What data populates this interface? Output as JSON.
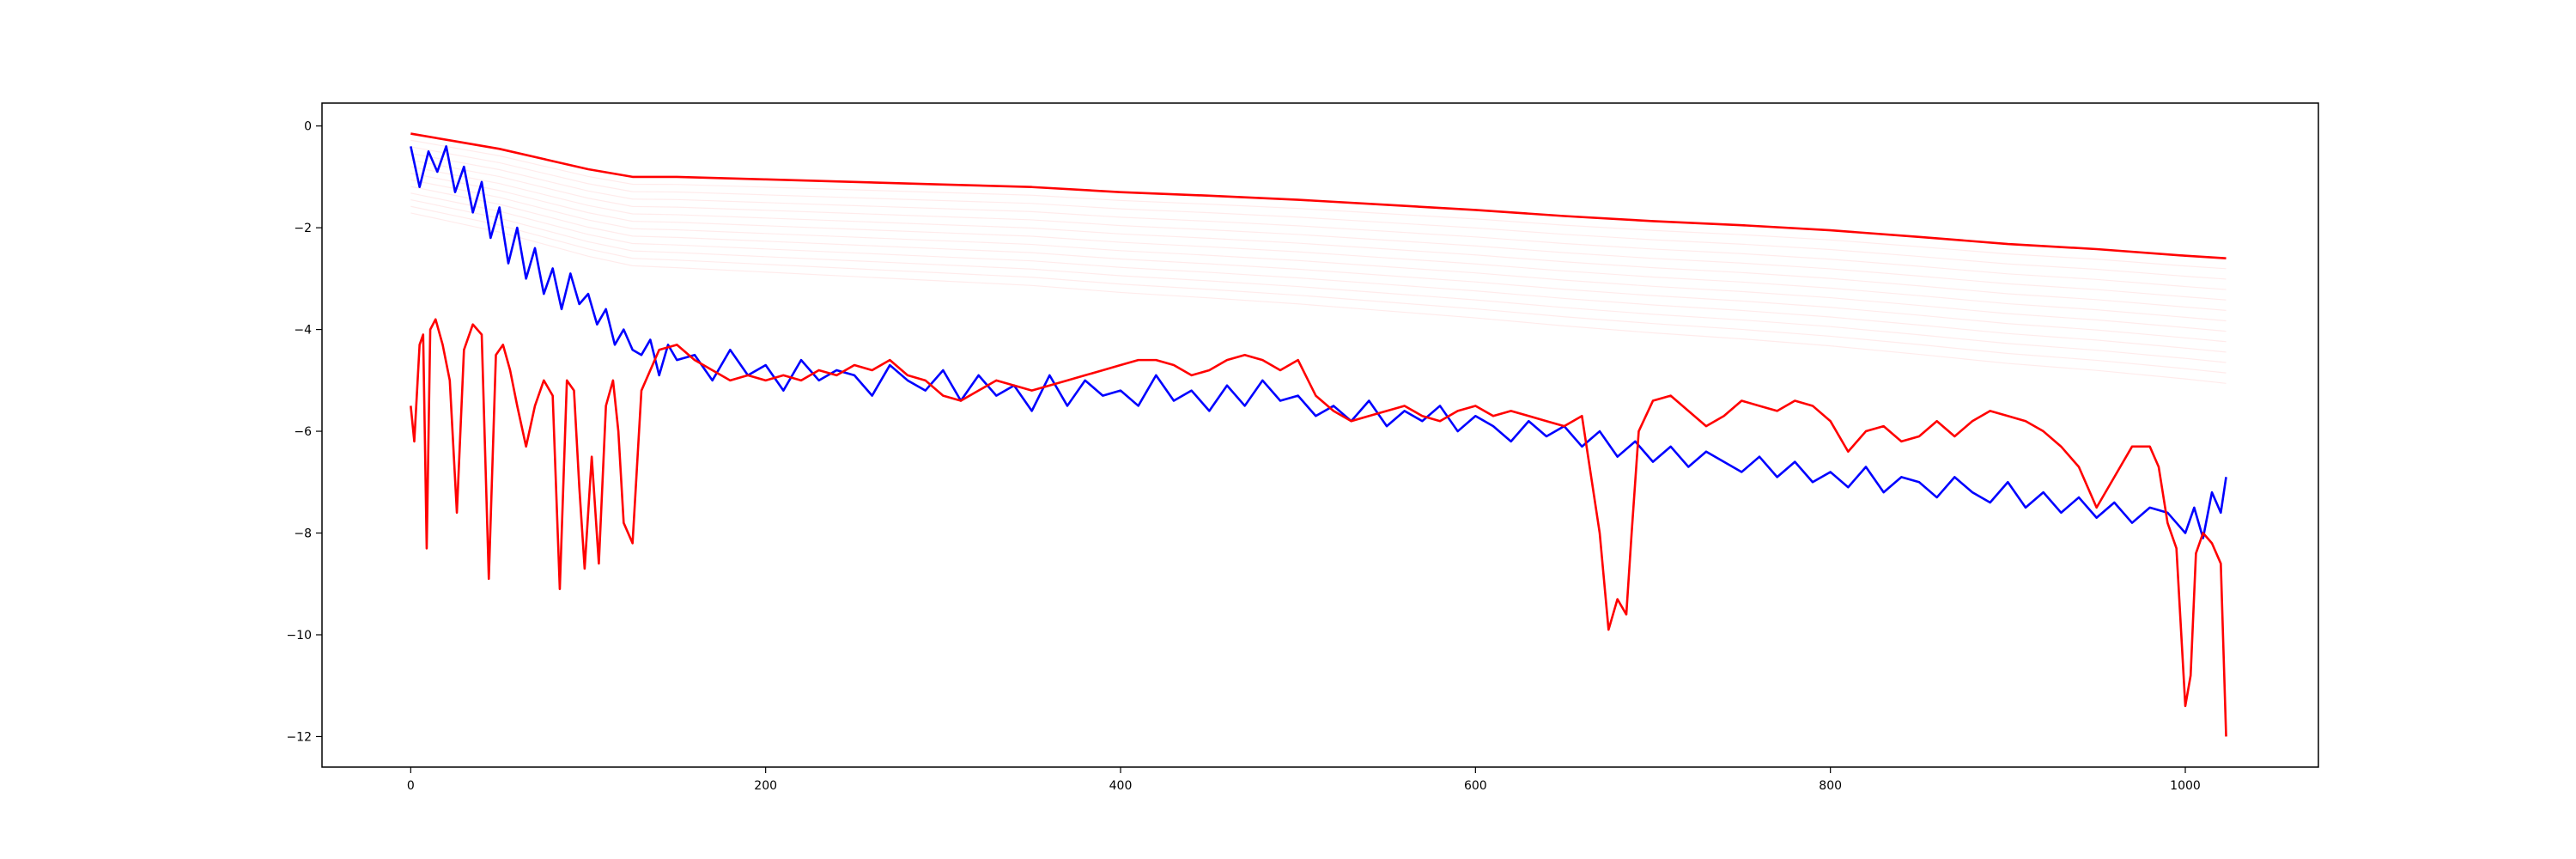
{
  "chart_data": {
    "type": "line",
    "title": "",
    "xlabel": "",
    "ylabel": "",
    "xlim": [
      -50,
      1075
    ],
    "ylim": [
      -12.6,
      0.45
    ],
    "x_ticks": [
      {
        "value": 0,
        "label": "0"
      },
      {
        "value": 200,
        "label": "200"
      },
      {
        "value": 400,
        "label": "400"
      },
      {
        "value": 600,
        "label": "600"
      },
      {
        "value": 800,
        "label": "800"
      },
      {
        "value": 1000,
        "label": "1000"
      }
    ],
    "y_ticks": [
      {
        "value": 0,
        "label": "0"
      },
      {
        "value": -2,
        "label": "−2"
      },
      {
        "value": -4,
        "label": "−4"
      },
      {
        "value": -6,
        "label": "−6"
      },
      {
        "value": -8,
        "label": "−8"
      },
      {
        "value": -10,
        "label": "−10"
      },
      {
        "value": -12,
        "label": "−12"
      }
    ],
    "grid": false,
    "legend": "none",
    "series": [
      {
        "color": "#0000ff",
        "x": [
          0,
          5,
          10,
          15,
          20,
          25,
          30,
          35,
          40,
          45,
          50,
          55,
          60,
          65,
          70,
          75,
          80,
          85,
          90,
          95,
          100,
          105,
          110,
          115,
          120,
          125,
          130,
          135,
          140,
          145,
          150,
          160,
          170,
          180,
          190,
          200,
          210,
          220,
          230,
          240,
          250,
          260,
          270,
          280,
          290,
          300,
          310,
          320,
          330,
          340,
          350,
          360,
          370,
          380,
          390,
          400,
          410,
          420,
          430,
          440,
          450,
          460,
          470,
          480,
          490,
          500,
          510,
          520,
          530,
          540,
          550,
          560,
          570,
          580,
          590,
          600,
          610,
          620,
          630,
          640,
          650,
          660,
          670,
          680,
          690,
          700,
          710,
          720,
          730,
          740,
          750,
          760,
          770,
          780,
          790,
          800,
          810,
          820,
          830,
          840,
          850,
          860,
          870,
          880,
          890,
          900,
          910,
          920,
          930,
          940,
          950,
          960,
          970,
          980,
          990,
          1000,
          1005,
          1010,
          1015,
          1020,
          1023
        ],
        "y": [
          -0.4,
          -1.2,
          -0.5,
          -0.9,
          -0.4,
          -1.3,
          -0.8,
          -1.7,
          -1.1,
          -2.2,
          -1.6,
          -2.7,
          -2.0,
          -3.0,
          -2.4,
          -3.3,
          -2.8,
          -3.6,
          -2.9,
          -3.5,
          -3.3,
          -3.9,
          -3.6,
          -4.3,
          -4.0,
          -4.4,
          -4.5,
          -4.2,
          -4.9,
          -4.3,
          -4.6,
          -4.5,
          -5.0,
          -4.4,
          -4.9,
          -4.7,
          -5.2,
          -4.6,
          -5.0,
          -4.8,
          -4.9,
          -5.3,
          -4.7,
          -5.0,
          -5.2,
          -4.8,
          -5.4,
          -4.9,
          -5.3,
          -5.1,
          -5.6,
          -4.9,
          -5.5,
          -5.0,
          -5.3,
          -5.2,
          -5.5,
          -4.9,
          -5.4,
          -5.2,
          -5.6,
          -5.1,
          -5.5,
          -5.0,
          -5.4,
          -5.3,
          -5.7,
          -5.5,
          -5.8,
          -5.4,
          -5.9,
          -5.6,
          -5.8,
          -5.5,
          -6.0,
          -5.7,
          -5.9,
          -6.2,
          -5.8,
          -6.1,
          -5.9,
          -6.3,
          -6.0,
          -6.5,
          -6.2,
          -6.6,
          -6.3,
          -6.7,
          -6.4,
          -6.6,
          -6.8,
          -6.5,
          -6.9,
          -6.6,
          -7.0,
          -6.8,
          -7.1,
          -6.7,
          -7.2,
          -6.9,
          -7.0,
          -7.3,
          -6.9,
          -7.2,
          -7.4,
          -7.0,
          -7.5,
          -7.2,
          -7.6,
          -7.3,
          -7.7,
          -7.4,
          -7.8,
          -7.5,
          -7.6,
          -8.0,
          -7.5,
          -8.1,
          -7.2,
          -7.6,
          -6.9
        ]
      },
      {
        "color": "#ff0000",
        "x": [
          0,
          2,
          5,
          7,
          9,
          11,
          14,
          18,
          22,
          26,
          30,
          35,
          40,
          44,
          48,
          52,
          56,
          60,
          65,
          70,
          75,
          80,
          84,
          88,
          92,
          95,
          98,
          102,
          106,
          110,
          114,
          117,
          120,
          125,
          130,
          140,
          150,
          160,
          170,
          180,
          190,
          200,
          210,
          220,
          230,
          240,
          250,
          260,
          270,
          280,
          290,
          300,
          310,
          320,
          330,
          340,
          350,
          360,
          370,
          380,
          390,
          400,
          410,
          420,
          430,
          440,
          450,
          460,
          470,
          480,
          490,
          500,
          510,
          520,
          530,
          540,
          550,
          560,
          570,
          580,
          590,
          600,
          610,
          620,
          630,
          640,
          650,
          660,
          670,
          675,
          680,
          685,
          688,
          692,
          700,
          710,
          720,
          730,
          740,
          750,
          760,
          770,
          780,
          790,
          800,
          810,
          820,
          830,
          840,
          850,
          860,
          870,
          880,
          890,
          900,
          910,
          920,
          930,
          940,
          950,
          960,
          970,
          980,
          985,
          990,
          995,
          1000,
          1003,
          1006,
          1010,
          1015,
          1020,
          1023
        ],
        "y": [
          -5.5,
          -6.2,
          -4.3,
          -4.1,
          -8.3,
          -4.0,
          -3.8,
          -4.3,
          -5.0,
          -7.6,
          -4.4,
          -3.9,
          -4.1,
          -8.9,
          -4.5,
          -4.3,
          -4.8,
          -5.5,
          -6.3,
          -5.5,
          -5.0,
          -5.3,
          -9.1,
          -5.0,
          -5.2,
          -7.1,
          -8.7,
          -6.5,
          -8.6,
          -5.5,
          -5.0,
          -6.0,
          -7.8,
          -8.2,
          -5.2,
          -4.4,
          -4.3,
          -4.6,
          -4.8,
          -5.0,
          -4.9,
          -5.0,
          -4.9,
          -5.0,
          -4.8,
          -4.9,
          -4.7,
          -4.8,
          -4.6,
          -4.9,
          -5.0,
          -5.3,
          -5.4,
          -5.2,
          -5.0,
          -5.1,
          -5.2,
          -5.1,
          -5.0,
          -4.9,
          -4.8,
          -4.7,
          -4.6,
          -4.6,
          -4.7,
          -4.9,
          -4.8,
          -4.6,
          -4.5,
          -4.6,
          -4.8,
          -4.6,
          -5.3,
          -5.6,
          -5.8,
          -5.7,
          -5.6,
          -5.5,
          -5.7,
          -5.8,
          -5.6,
          -5.5,
          -5.7,
          -5.6,
          -5.7,
          -5.8,
          -5.9,
          -5.7,
          -8.0,
          -9.9,
          -9.3,
          -9.6,
          -8.0,
          -6.0,
          -5.4,
          -5.3,
          -5.6,
          -5.9,
          -5.7,
          -5.4,
          -5.5,
          -5.6,
          -5.4,
          -5.5,
          -5.8,
          -6.4,
          -6.0,
          -5.9,
          -6.2,
          -6.1,
          -5.8,
          -6.1,
          -5.8,
          -5.6,
          -5.7,
          -5.8,
          -6.0,
          -6.3,
          -6.7,
          -7.5,
          -6.9,
          -6.3,
          -6.3,
          -6.7,
          -7.8,
          -8.3,
          -11.4,
          -10.8,
          -8.4,
          -8.0,
          -8.2,
          -8.6,
          -12.0
        ]
      },
      {
        "color": "#ff0000",
        "x": [
          0,
          25,
          50,
          75,
          100,
          125,
          150,
          200,
          250,
          300,
          350,
          400,
          450,
          500,
          550,
          600,
          650,
          700,
          750,
          800,
          850,
          900,
          950,
          1000,
          1023
        ],
        "y": [
          -0.15,
          -0.3,
          -0.45,
          -0.65,
          -0.85,
          -1.0,
          -1.0,
          -1.05,
          -1.1,
          -1.15,
          -1.2,
          -1.3,
          -1.37,
          -1.45,
          -1.55,
          -1.65,
          -1.77,
          -1.87,
          -1.95,
          -2.05,
          -2.18,
          -2.32,
          -2.42,
          -2.55,
          -2.6
        ]
      }
    ]
  }
}
